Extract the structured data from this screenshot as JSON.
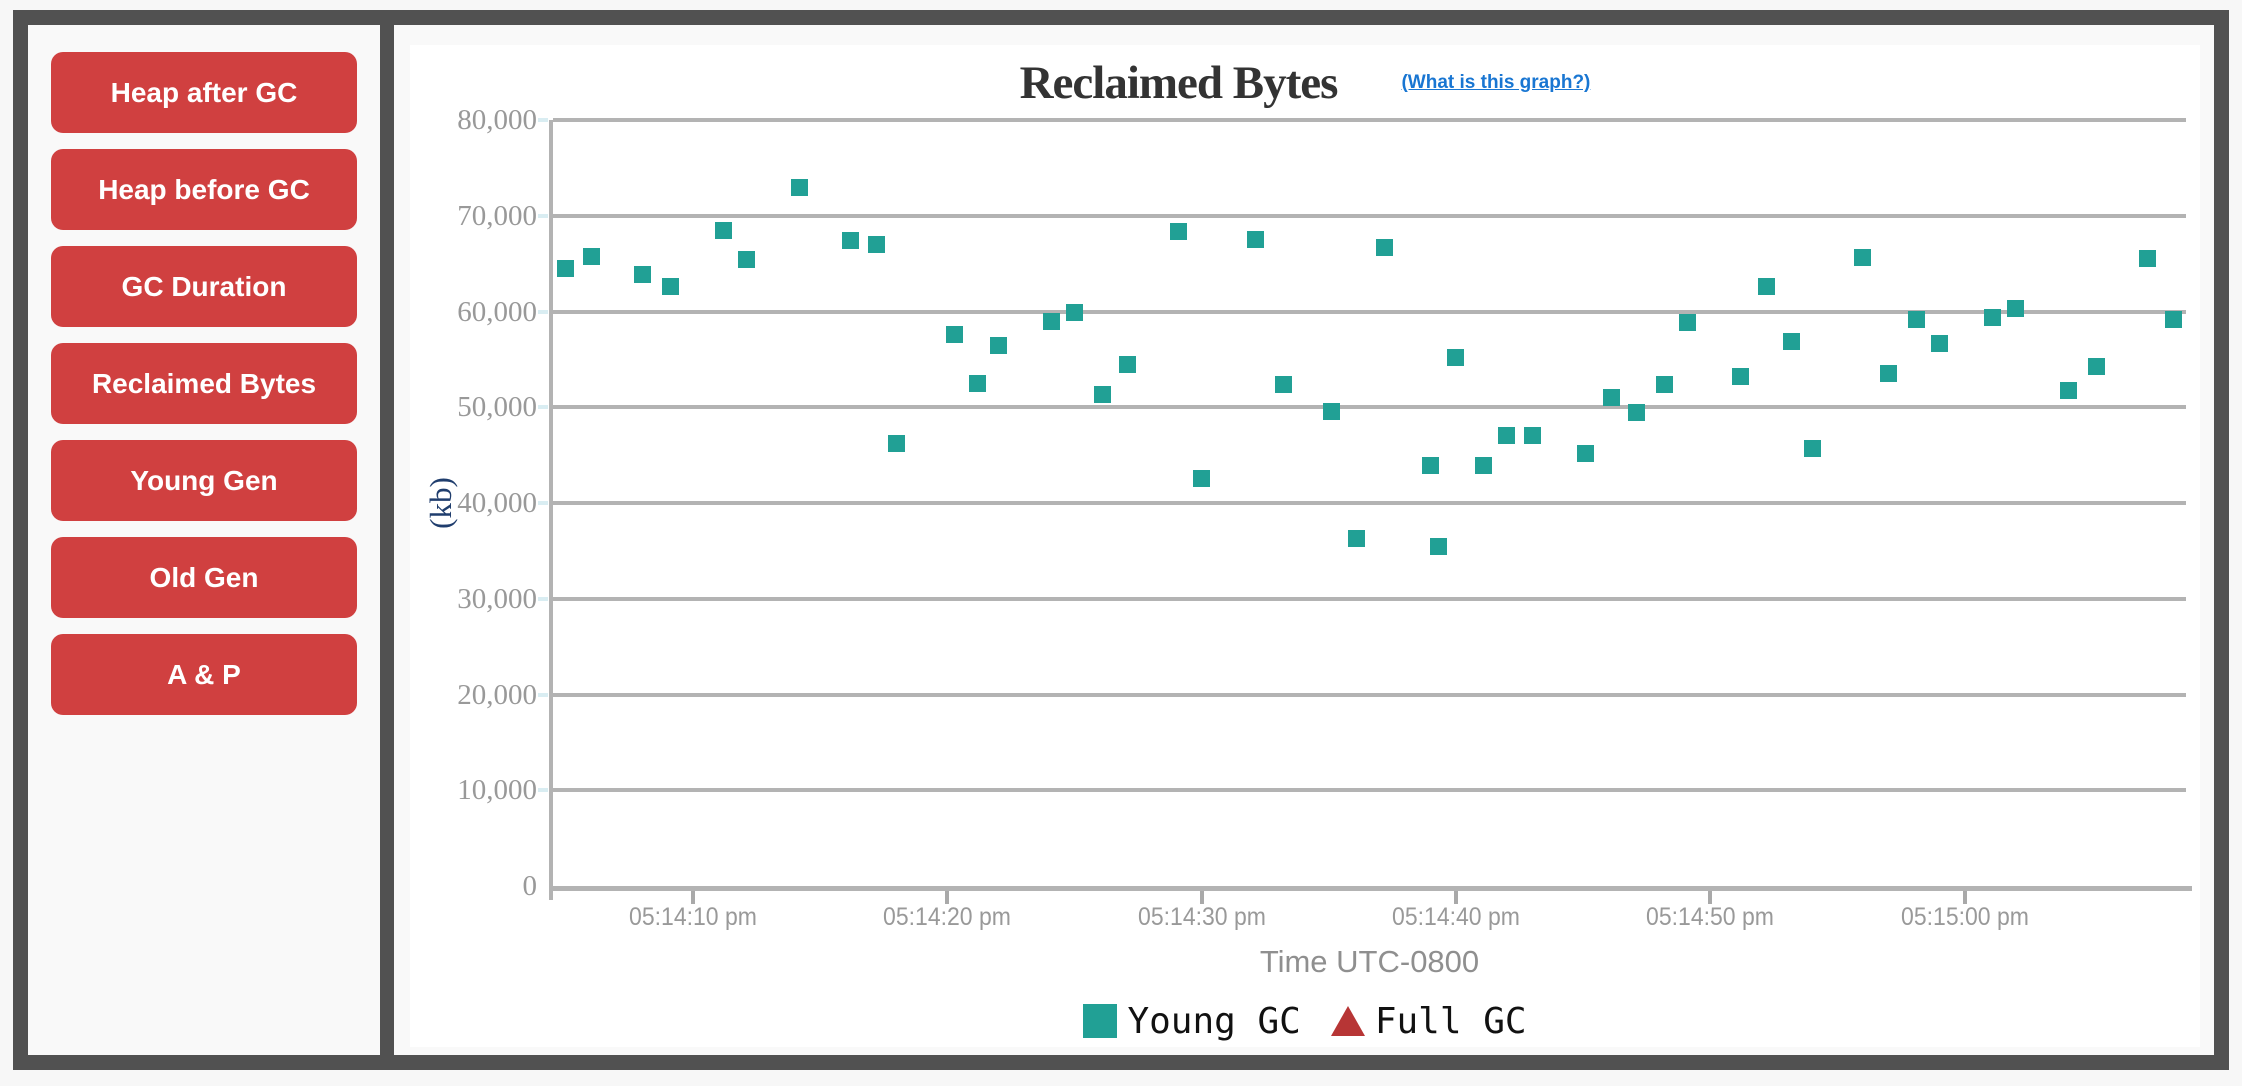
{
  "sidebar": {
    "buttons": [
      "Heap after GC",
      "Heap before GC",
      "GC Duration",
      "Reclaimed Bytes",
      "Young Gen",
      "Old Gen",
      "A & P"
    ]
  },
  "header": {
    "title": "Reclaimed Bytes",
    "help_link": "(What is this graph?)"
  },
  "colors": {
    "button_red": "#d04040",
    "frame_dark": "#515151",
    "young_gc_teal": "#21a095",
    "full_gc_red": "#b73535",
    "link_blue": "#1976d2",
    "grid_gray": "#b3b3b3",
    "tick_text_gray": "#999999",
    "kb_label_navy": "#1f3d6d",
    "title_text": "#333333"
  },
  "chart_data": {
    "type": "scatter",
    "title": "Reclaimed Bytes",
    "xlabel": "Time UTC-0800",
    "ylabel": "(kb)",
    "ylim": [
      0,
      80000
    ],
    "grid": true,
    "legend_position": "bottom",
    "x_time_base": "05:14:00 pm",
    "x_window": {
      "start_s": 4.5,
      "end_s": 68.7
    },
    "x_ticks": [
      {
        "s": 10,
        "label": "05:14:10 pm"
      },
      {
        "s": 20,
        "label": "05:14:20 pm"
      },
      {
        "s": 30,
        "label": "05:14:30 pm"
      },
      {
        "s": 40,
        "label": "05:14:40 pm"
      },
      {
        "s": 50,
        "label": "05:14:50 pm"
      },
      {
        "s": 60,
        "label": "05:15:00 pm"
      }
    ],
    "y_ticks": [
      {
        "value": 80000,
        "label": "80,000"
      },
      {
        "value": 70000,
        "label": "70,000"
      },
      {
        "value": 60000,
        "label": "60,000"
      },
      {
        "value": 50000,
        "label": "50,000"
      },
      {
        "value": 40000,
        "label": "40,000"
      },
      {
        "value": 30000,
        "label": "30,000"
      },
      {
        "value": 20000,
        "label": "20,000"
      },
      {
        "value": 10000,
        "label": "10,000"
      },
      {
        "value": 0,
        "label": "0"
      }
    ],
    "series": [
      {
        "name": "Young GC",
        "marker": "square",
        "color": "#21a095",
        "points_s_kb": [
          [
            5.0,
            64500
          ],
          [
            6.0,
            65700
          ],
          [
            8.0,
            63900
          ],
          [
            9.1,
            62600
          ],
          [
            11.2,
            68500
          ],
          [
            12.1,
            65400
          ],
          [
            14.2,
            72900
          ],
          [
            16.2,
            67400
          ],
          [
            17.2,
            67000
          ],
          [
            18.0,
            46200
          ],
          [
            20.3,
            57600
          ],
          [
            21.2,
            52500
          ],
          [
            22.0,
            56400
          ],
          [
            24.1,
            59000
          ],
          [
            25.0,
            59900
          ],
          [
            26.1,
            51300
          ],
          [
            27.1,
            54500
          ],
          [
            29.1,
            68400
          ],
          [
            30.0,
            42600
          ],
          [
            32.1,
            67500
          ],
          [
            33.2,
            52400
          ],
          [
            35.1,
            49600
          ],
          [
            36.1,
            36300
          ],
          [
            37.2,
            66700
          ],
          [
            39.0,
            43900
          ],
          [
            39.3,
            35500
          ],
          [
            40.0,
            55200
          ],
          [
            41.1,
            43900
          ],
          [
            42.0,
            47100
          ],
          [
            43.0,
            47100
          ],
          [
            45.1,
            45200
          ],
          [
            46.1,
            51000
          ],
          [
            47.1,
            49400
          ],
          [
            48.2,
            52400
          ],
          [
            49.1,
            58800
          ],
          [
            51.2,
            53200
          ],
          [
            52.2,
            62600
          ],
          [
            53.2,
            56900
          ],
          [
            54.0,
            45700
          ],
          [
            56.0,
            65600
          ],
          [
            57.0,
            53500
          ],
          [
            58.1,
            59200
          ],
          [
            59.0,
            56700
          ],
          [
            61.1,
            59400
          ],
          [
            62.0,
            60300
          ],
          [
            64.1,
            51800
          ],
          [
            65.2,
            54300
          ],
          [
            67.2,
            65500
          ],
          [
            68.2,
            59200
          ]
        ]
      },
      {
        "name": "Full GC",
        "marker": "triangle",
        "color": "#b73535",
        "points_s_kb": []
      }
    ]
  }
}
